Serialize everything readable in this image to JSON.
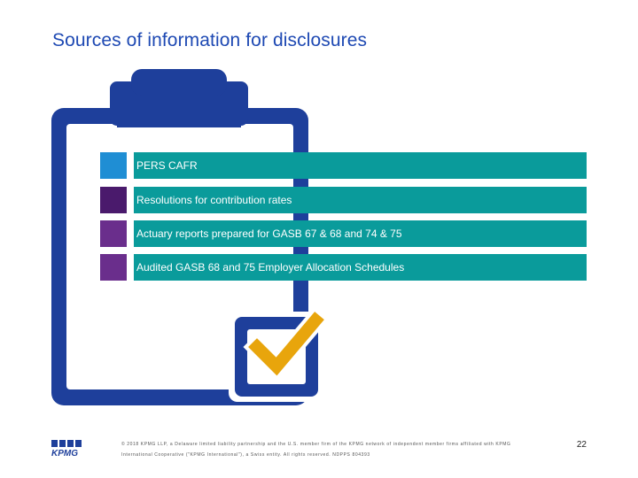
{
  "slide": {
    "title": "Sources of information for disclosures",
    "items": [
      {
        "label": "PERS CAFR",
        "marker_color": "#1f8ed4"
      },
      {
        "label": "Resolutions for contribution rates",
        "marker_color": "#4a1a6c"
      },
      {
        "label": "Actuary reports prepared for GASB 67 & 68 and 74 & 75",
        "marker_color": "#6a2e8c"
      },
      {
        "label": "Audited GASB 68 and 75 Employer Allocation Schedules",
        "marker_color": "#6a2e8c"
      }
    ],
    "bar_color": "#0a9b9b",
    "clipboard_color": "#1e3f9b",
    "checkmark_color": "#e8a50c"
  },
  "footer": {
    "logo_text": "KPMG",
    "copyright": "© 2018 KPMG LLP, a Delaware limited liability partnership and the U.S. member firm of the KPMG network of independent member firms affiliated with KPMG International Cooperative (\"KPMG International\"), a Swiss entity. All rights reserved. NDPPS 804393",
    "page_number": "22"
  }
}
